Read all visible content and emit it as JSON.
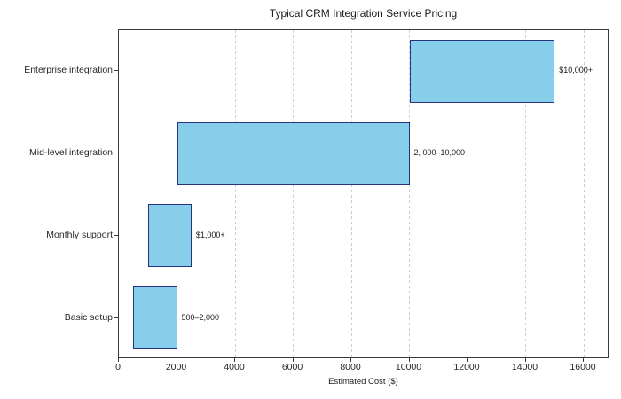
{
  "chart_data": {
    "type": "bar",
    "orientation": "horizontal",
    "title": "Typical CRM Integration Service Pricing",
    "xlabel": "Estimated Cost ($)",
    "ylabel": "",
    "categories": [
      "Enterprise integration",
      "Mid-level integration",
      "Monthly support",
      "Basic setup"
    ],
    "bars": [
      {
        "category": "Enterprise integration",
        "start": 10000,
        "end": 15000,
        "label": "$10,000+"
      },
      {
        "category": "Mid-level integration",
        "start": 2000,
        "end": 10000,
        "label": "2, 000–10,000"
      },
      {
        "category": "Monthly support",
        "start": 1000,
        "end": 2500,
        "label": "$1,000+"
      },
      {
        "category": "Basic setup",
        "start": 500,
        "end": 2000,
        "label": "500–2,000"
      }
    ],
    "x_ticks": [
      0,
      2000,
      4000,
      6000,
      8000,
      10000,
      12000,
      14000,
      16000
    ],
    "xlim": [
      0,
      16885
    ],
    "grid": "vertical-dashed",
    "legend": "none",
    "colors": {
      "bar_fill": "#87CEEB",
      "bar_edge": "#27337f",
      "gridline": "#cdcdcd",
      "spine": "#3a3a3a",
      "text": "#262626"
    }
  }
}
